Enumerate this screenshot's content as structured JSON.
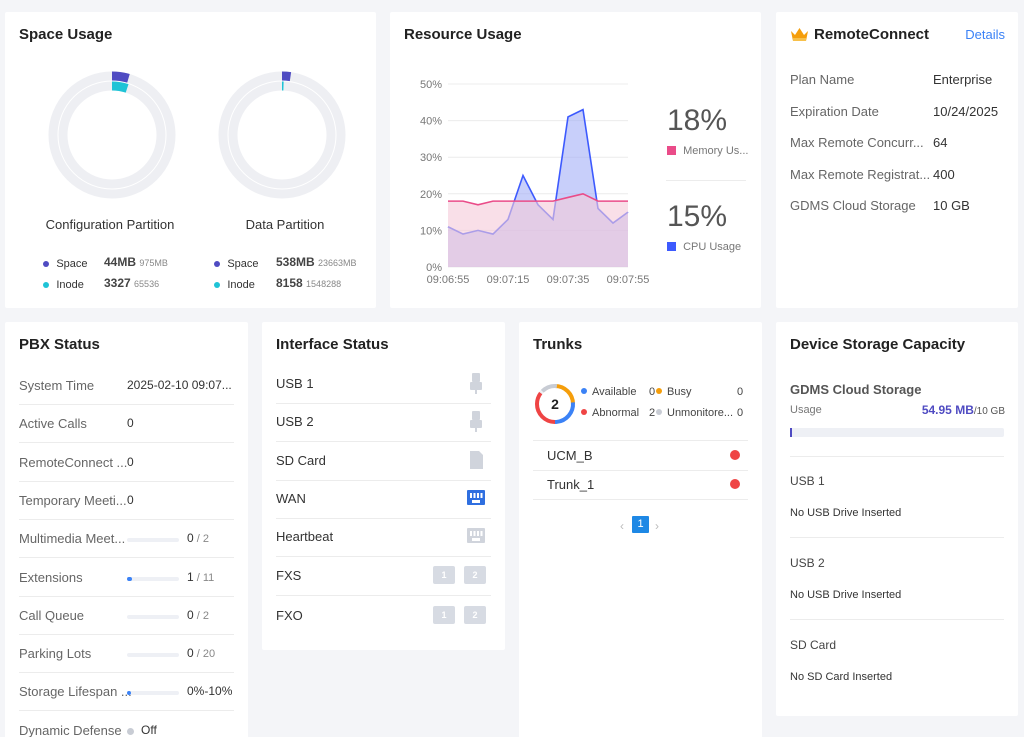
{
  "space_usage": {
    "title": "Space Usage",
    "config": {
      "name": "Configuration Partition",
      "space_label": "Space",
      "space_value": "44MB",
      "space_total": "975MB",
      "inode_label": "Inode",
      "inode_value": "3327",
      "inode_total": "65536",
      "space_fraction": 0.045,
      "inode_fraction": 0.05
    },
    "data": {
      "name": "Data Partition",
      "space_label": "Space",
      "space_value": "538MB",
      "space_total": "23663MB",
      "inode_label": "Inode",
      "inode_value": "8158",
      "inode_total": "1548288",
      "space_fraction": 0.023,
      "inode_fraction": 0.005
    },
    "colors": {
      "space": "#4f4bc2",
      "inode": "#1fc3d6",
      "track": "#eeeff3"
    }
  },
  "resource_usage": {
    "title": "Resource Usage",
    "memory_percent": "18%",
    "memory_label": "Memory Us...",
    "cpu_percent": "15%",
    "cpu_label": "CPU Usage",
    "colors": {
      "memory": "#ea4c89",
      "cpu": "#3d5afe"
    }
  },
  "chart_data": {
    "type": "area",
    "y_ticks": [
      "50%",
      "40%",
      "30%",
      "20%",
      "10%",
      "0%"
    ],
    "x_ticks": [
      "09:06:55",
      "09:07:15",
      "09:07:35",
      "09:07:55"
    ],
    "ylim": [
      0,
      50
    ],
    "grid": true,
    "series": [
      {
        "name": "CPU Usage",
        "values": [
          11,
          9,
          10,
          9,
          13,
          25,
          17,
          13,
          41,
          43,
          16,
          12,
          15
        ]
      },
      {
        "name": "Memory Us...",
        "values": [
          18,
          18,
          17,
          18,
          18,
          18,
          18,
          18,
          19,
          20,
          18,
          18,
          18
        ]
      }
    ]
  },
  "remote_connect": {
    "title": "RemoteConnect",
    "details_link": "Details",
    "rows": [
      {
        "label": "Plan Name",
        "value": "Enterprise"
      },
      {
        "label": "Expiration Date",
        "value": "10/24/2025"
      },
      {
        "label": "Max Remote Concurr...",
        "value": "64"
      },
      {
        "label": "Max Remote Registrat...",
        "value": "400"
      },
      {
        "label": "GDMS Cloud Storage",
        "value": "10 GB"
      }
    ]
  },
  "pbx_status": {
    "title": "PBX Status",
    "rows": [
      {
        "label": "System Time",
        "value": "2025-02-10 09:07...",
        "bar": null,
        "suffix": ""
      },
      {
        "label": "Active Calls",
        "value": "0",
        "bar": null,
        "suffix": ""
      },
      {
        "label": "RemoteConnect ...",
        "value": "0",
        "bar": null,
        "suffix": ""
      },
      {
        "label": "Temporary Meeti...",
        "value": "0",
        "bar": null,
        "suffix": ""
      },
      {
        "label": "Multimedia Meet...",
        "value": "0",
        "bar": 0,
        "suffix": " / 2"
      },
      {
        "label": "Extensions",
        "value": "1",
        "bar": 0.09,
        "suffix": " / 11"
      },
      {
        "label": "Call Queue",
        "value": "0",
        "bar": 0,
        "suffix": " / 2"
      },
      {
        "label": "Parking Lots",
        "value": "0",
        "bar": 0,
        "suffix": " / 20"
      },
      {
        "label": "Storage Lifespan ...",
        "value": "0%-10%",
        "bar": 0.05,
        "suffix": ""
      },
      {
        "label": "Dynamic Defense",
        "value": "Off",
        "bar": null,
        "suffix": ""
      }
    ]
  },
  "interface_status": {
    "title": "Interface Status",
    "rows": [
      {
        "label": "USB 1",
        "icon": "usb-icon"
      },
      {
        "label": "USB 2",
        "icon": "usb-icon"
      },
      {
        "label": "SD Card",
        "icon": "sd-card-icon"
      },
      {
        "label": "WAN",
        "icon": "ethernet-port-icon"
      },
      {
        "label": "Heartbeat",
        "icon": "ethernet-port-icon"
      },
      {
        "label": "FXS",
        "icon": "phone-port-icon",
        "ports": [
          "1",
          "2"
        ]
      },
      {
        "label": "FXO",
        "icon": "phone-port-icon",
        "ports": [
          "1",
          "2"
        ]
      }
    ]
  },
  "trunks": {
    "title": "Trunks",
    "total": "2",
    "legend": [
      {
        "label": "Available",
        "value": "0",
        "color": "#3b82f6"
      },
      {
        "label": "Busy",
        "value": "0",
        "color": "#f59e0b"
      },
      {
        "label": "Abnormal",
        "value": "2",
        "color": "#ef4444"
      },
      {
        "label": "Unmonitore...",
        "value": "0",
        "color": "#c8ccd4"
      }
    ],
    "items": [
      "UCM_B",
      "Trunk_1"
    ],
    "pager": {
      "prev": "‹",
      "page": "1",
      "next": "›"
    }
  },
  "device_storage": {
    "title": "Device Storage Capacity",
    "gdms_title": "GDMS Cloud Storage",
    "usage_label": "Usage",
    "usage_value": "54.95 MB",
    "usage_total": "/10 GB",
    "usage_fraction": 0.005,
    "sections": [
      {
        "title": "USB 1",
        "text": "No USB Drive Inserted"
      },
      {
        "title": "USB 2",
        "text": "No USB Drive Inserted"
      },
      {
        "title": "SD Card",
        "text": "No SD Card Inserted"
      }
    ]
  }
}
